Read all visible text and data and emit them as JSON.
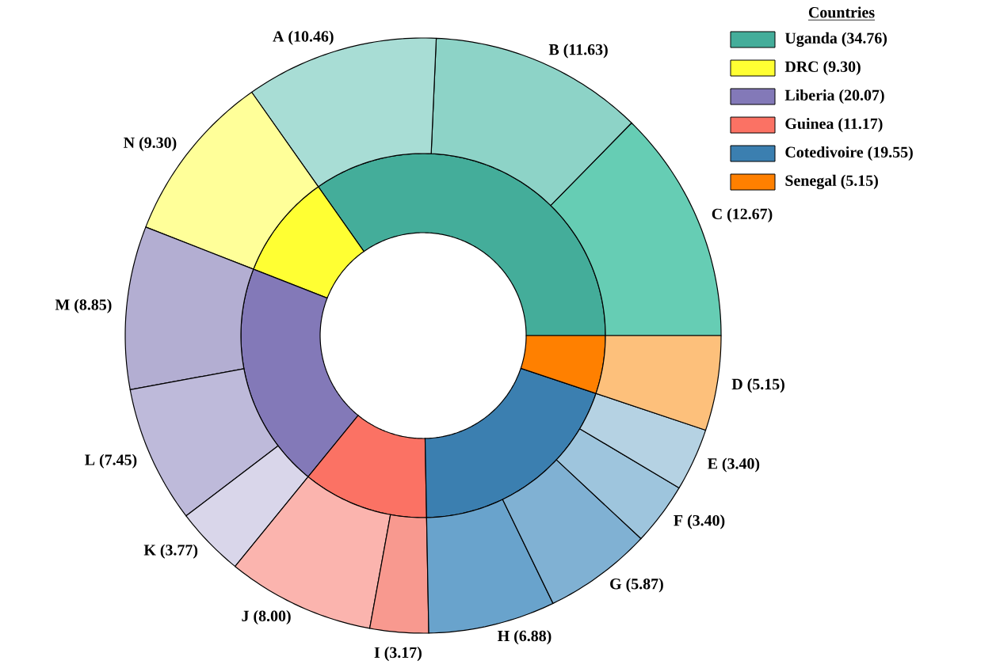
{
  "chart_data": [
    {
      "type": "donut",
      "legend_title": "Countries",
      "legend": "top right",
      "categories": [
        "Uganda",
        "DRC",
        "Liberia",
        "Guinea",
        "Cotedivoire",
        "Senegal"
      ],
      "values": [
        34.76,
        9.3,
        20.07,
        11.17,
        19.55,
        5.15
      ],
      "value_labels": [
        "(34.76)",
        "(9.30)",
        "(20.07)",
        "(11.17)",
        "(19.55)",
        "(5.15)"
      ],
      "colors": [
        "#44ad9a",
        "#ffff33",
        "#8379b8",
        "#fb7264",
        "#3b7fb0",
        "#ff8000"
      ]
    },
    {
      "type": "donut",
      "categories": [
        "C",
        "B",
        "A",
        "N",
        "M",
        "L",
        "K",
        "J",
        "I",
        "H",
        "G",
        "F",
        "E",
        "D"
      ],
      "values": [
        12.67,
        11.63,
        10.46,
        9.3,
        8.85,
        7.45,
        3.77,
        8.0,
        3.17,
        6.88,
        5.87,
        3.4,
        3.4,
        5.15
      ],
      "value_labels": [
        "(12.67)",
        "(11.63)",
        "(10.46)",
        "(9.30)",
        "(8.85)",
        "(7.45)",
        "(3.77)",
        "(8.00)",
        "(3.17)",
        "(6.88)",
        "(5.87)",
        "(3.40)",
        "(3.40)",
        "(5.15)"
      ],
      "colors": [
        "#66cdb4",
        "#8dd3c7",
        "#a8ddd5",
        "#ffff99",
        "#b3aed2",
        "#bebada",
        "#d9d6ea",
        "#fbb4ae",
        "#f8998f",
        "#69a3cc",
        "#80b1d3",
        "#9ec5dd",
        "#b5d2e3",
        "#fdc07b"
      ]
    }
  ]
}
